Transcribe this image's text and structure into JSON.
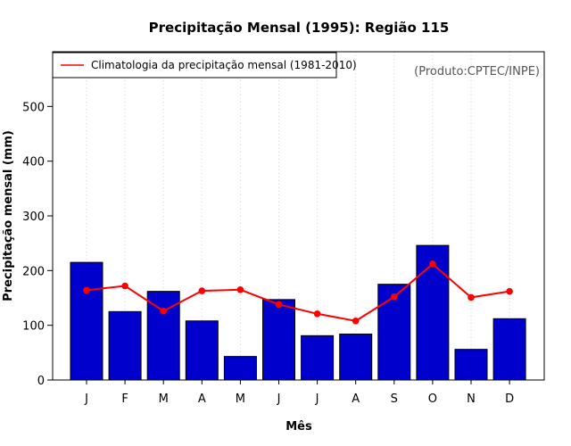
{
  "chart_data": {
    "type": "bar",
    "title": "Precipitação Mensal (1995): Região 115",
    "xlabel": "Mês",
    "ylabel": "Precipitação mensal (mm)",
    "ylim": [
      0,
      600
    ],
    "yticks": [
      0,
      100,
      200,
      300,
      400,
      500
    ],
    "categories": [
      "J",
      "F",
      "M",
      "A",
      "M",
      "J",
      "J",
      "A",
      "S",
      "O",
      "N",
      "D"
    ],
    "series": [
      {
        "name": "Precipitação mensal (1995)",
        "type": "bar",
        "color": "#0000cd",
        "values": [
          215,
          125,
          162,
          108,
          43,
          147,
          81,
          84,
          175,
          246,
          56,
          112
        ]
      },
      {
        "name": "Climatologia da precipitação mensal (1981-2010)",
        "type": "line",
        "color": "#ff0000",
        "values": [
          164,
          172,
          126,
          163,
          165,
          138,
          121,
          108,
          152,
          212,
          151,
          162
        ]
      }
    ],
    "legend": {
      "position": "top-left",
      "label": "Climatologia da precipitação mensal (1981-2010)"
    },
    "annotation": "(Produto:CPTEC/INPE)",
    "grid": "vertical-dotted"
  }
}
